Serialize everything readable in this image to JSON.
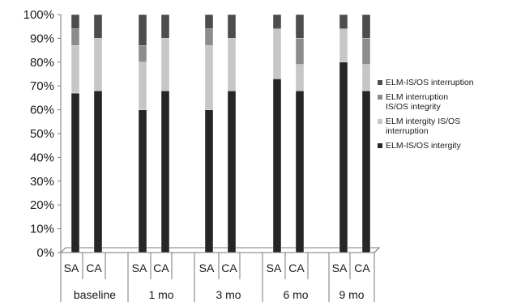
{
  "chart_data": {
    "type": "bar",
    "stacked": true,
    "normalized": true,
    "groups": [
      "baseline",
      "1 mo",
      "3 mo",
      "6 mo",
      "9 mo"
    ],
    "bar_labels": [
      "SA",
      "CA"
    ],
    "categories": [
      "SA",
      "CA",
      "SA",
      "CA",
      "SA",
      "CA",
      "SA",
      "CA",
      "SA",
      "CA"
    ],
    "series": [
      {
        "name": "ELM-IS/OS intergity",
        "color": "#262626",
        "values": [
          67,
          68,
          60,
          68,
          60,
          68,
          73,
          68,
          80,
          68
        ]
      },
      {
        "name": "ELM intergity IS/OS\ninterruption",
        "color": "#c6c6c6",
        "values": [
          20,
          22,
          20,
          22,
          27,
          22,
          21,
          11,
          14,
          11
        ]
      },
      {
        "name": "ELM interruption\nIS/OS integrity",
        "color": "#8c8c8c",
        "values": [
          7,
          0,
          7,
          0,
          7,
          0,
          0,
          11,
          0,
          11
        ]
      },
      {
        "name": "ELM-IS/OS interruption",
        "color": "#4d4d4d",
        "values": [
          6,
          10,
          13,
          10,
          6,
          10,
          6,
          10,
          6,
          10
        ]
      }
    ],
    "y_ticks": [
      "0%",
      "10%",
      "20%",
      "30%",
      "40%",
      "50%",
      "60%",
      "70%",
      "80%",
      "90%",
      "100%"
    ],
    "ylim": [
      0,
      100
    ],
    "grid": false,
    "legend_position": "right",
    "title": "",
    "xlabel": "",
    "ylabel": ""
  }
}
